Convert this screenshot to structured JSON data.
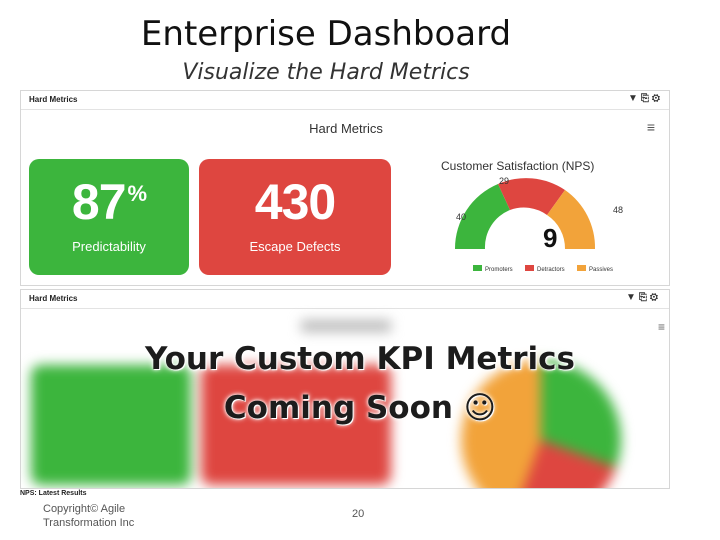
{
  "slide": {
    "title": "Enterprise Dashboard",
    "subtitle": "Visualize the Hard Metrics",
    "copyright_line1": "Copyright© Agile",
    "copyright_line2": "Transformation Inc",
    "page_number": "20"
  },
  "panel1": {
    "header_title": "Hard Metrics",
    "inner_title": "Hard Metrics",
    "icons": [
      "filter-icon",
      "share-icon",
      "settings-icon"
    ],
    "kpis": [
      {
        "value": "87",
        "unit": "%",
        "label": "Predictability",
        "color": "#3cb53d"
      },
      {
        "value": "430",
        "unit": "",
        "label": "Escape Defects",
        "color": "#de4640"
      }
    ],
    "gauge": {
      "title": "Customer Satisfaction (NPS)",
      "center_value": "9",
      "segments": [
        {
          "name": "Promoters",
          "value": "40",
          "color": "#3cb53d"
        },
        {
          "name": "Detractors",
          "value": "29",
          "color": "#de4640"
        },
        {
          "name": "Passives",
          "value": "48",
          "color": "#f2a33a"
        }
      ]
    }
  },
  "panel2": {
    "header_title": "Hard Metrics",
    "overlay_line1": "Your Custom KPI Metrics",
    "overlay_line2": "Coming Soon ☺",
    "footer_note": "NPS: Latest Results"
  }
}
